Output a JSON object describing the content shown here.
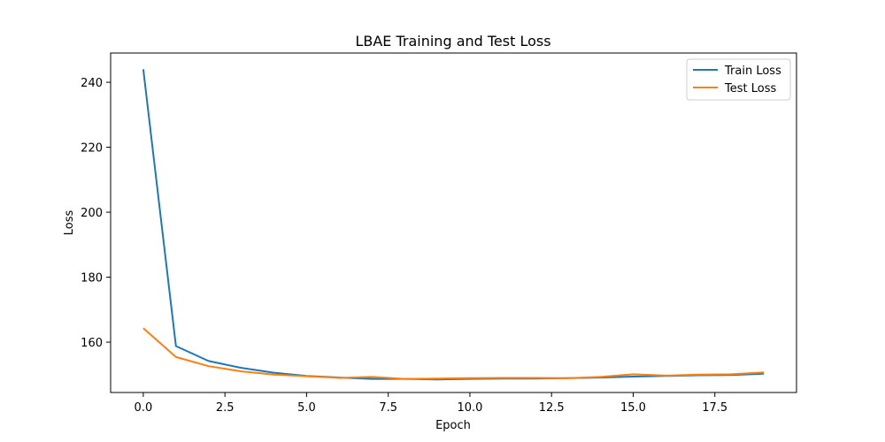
{
  "chart_data": {
    "type": "line",
    "title": "LBAE Training and Test Loss",
    "xlabel": "Epoch",
    "ylabel": "Loss",
    "xlim": [
      -1,
      20
    ],
    "ylim": [
      144.5,
      249
    ],
    "xticks": [
      0.0,
      2.5,
      5.0,
      7.5,
      10.0,
      12.5,
      15.0,
      17.5
    ],
    "xtick_labels": [
      "0.0",
      "2.5",
      "5.0",
      "7.5",
      "10.0",
      "12.5",
      "15.0",
      "17.5"
    ],
    "yticks": [
      160,
      180,
      200,
      220,
      240
    ],
    "ytick_labels": [
      "160",
      "180",
      "200",
      "220",
      "240"
    ],
    "grid": false,
    "legend_position": "top-right",
    "x": [
      0,
      1,
      2,
      3,
      4,
      5,
      6,
      7,
      8,
      9,
      10,
      11,
      12,
      13,
      14,
      15,
      16,
      17,
      18,
      19
    ],
    "series": [
      {
        "name": "Train Loss",
        "color": "#1f77b4",
        "values": [
          244.0,
          158.8,
          154.2,
          152.1,
          150.6,
          149.6,
          149.1,
          148.7,
          148.7,
          148.5,
          148.7,
          148.8,
          148.8,
          148.9,
          149.1,
          149.4,
          149.6,
          149.8,
          149.9,
          150.3
        ]
      },
      {
        "name": "Test Loss",
        "color": "#ff7f0e",
        "values": [
          164.3,
          155.4,
          152.6,
          151.0,
          150.0,
          149.5,
          149.0,
          149.3,
          148.7,
          148.8,
          148.9,
          149.0,
          149.0,
          148.9,
          149.3,
          150.1,
          149.7,
          150.0,
          150.1,
          150.7
        ]
      }
    ]
  }
}
